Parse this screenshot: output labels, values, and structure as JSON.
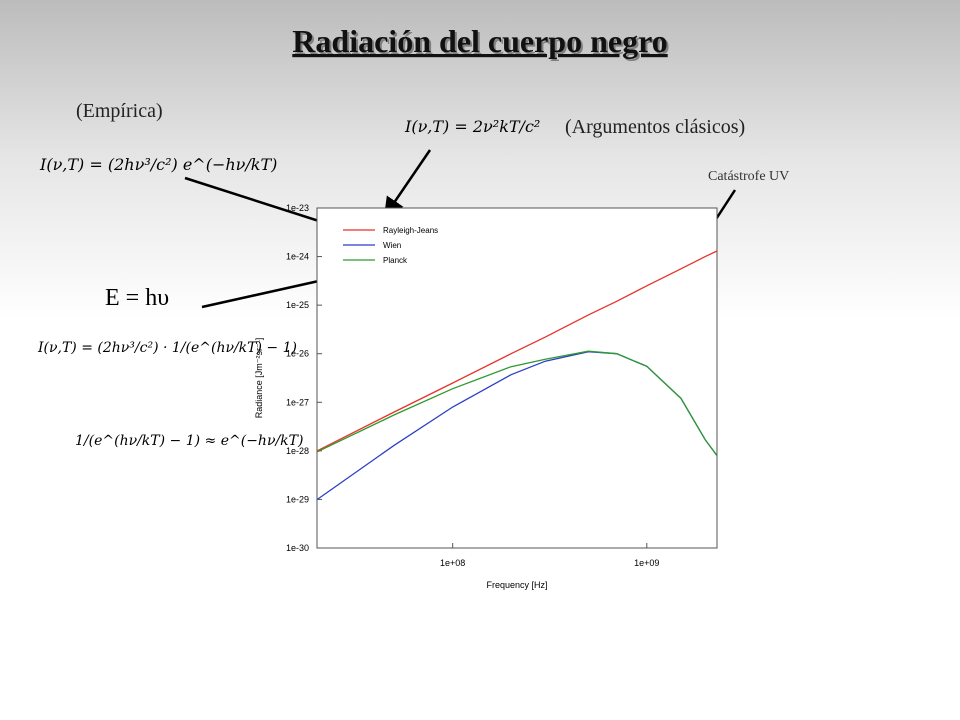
{
  "slide": {
    "title": "Radiación del cuerpo negro",
    "empirical_label": "(Empírica)",
    "classical_label": "(Argumentos clásicos)",
    "uv_label": "Catástrofe UV",
    "formula_empirical": "I(ν,T) = (2hν³/c²) e^(−hν/kT)",
    "formula_classical": "I(ν,T) = 2ν²kT/c²",
    "formula_energy": "E = hυ",
    "formula_planck": "I(ν,T) = (2hν³/c²) · 1/(e^(hν/kT) − 1)",
    "formula_approx": "1/(e^(hν/kT) − 1) ≈ e^(−hν/kT)"
  },
  "chart_data": {
    "type": "line",
    "x_label": "Frequency [Hz]",
    "y_label": "Radiance [Jm⁻²sr⁻¹]",
    "log_x": true,
    "log_y": true,
    "xlim": [
      20000000.0,
      2300000000.0
    ],
    "ylim": [
      1e-30,
      1e-23
    ],
    "xticks": [
      {
        "value": 100000000.0,
        "label": "1e+08"
      },
      {
        "value": 1000000000.0,
        "label": "1e+09"
      }
    ],
    "yticks": [
      1e-30,
      1e-29,
      1e-28,
      1e-27,
      1e-26,
      1e-25,
      1e-24,
      1e-23
    ],
    "legend": "upper-left",
    "x": [
      20000000.0,
      50000000.0,
      100000000.0,
      200000000.0,
      300000000.0,
      500000000.0,
      700000000.0,
      1000000000.0,
      1500000000.0,
      2000000000.0,
      2300000000.0
    ],
    "series": [
      {
        "name": "Rayleigh-Jeans",
        "color": "#e8312a",
        "values": [
          1e-28,
          6.3e-28,
          2.5e-27,
          1e-26,
          2.2e-26,
          6.3e-26,
          1.2e-25,
          2.5e-25,
          5.6e-25,
          1e-24,
          1.3e-24
        ]
      },
      {
        "name": "Wien",
        "color": "#2a3fc7",
        "values": [
          9.9e-30,
          1.3e-28,
          8e-28,
          3.7e-27,
          7e-27,
          1.1e-26,
          1e-26,
          5.5e-27,
          1.2e-27,
          1.7e-28,
          8e-29
        ]
      },
      {
        "name": "Planck",
        "color": "#2e9a2e",
        "values": [
          9.5e-29,
          5.5e-28,
          1.9e-27,
          5.4e-27,
          7.7e-27,
          1.13e-26,
          1e-26,
          5.5e-27,
          1.2e-27,
          1.7e-28,
          8e-29
        ]
      }
    ]
  }
}
